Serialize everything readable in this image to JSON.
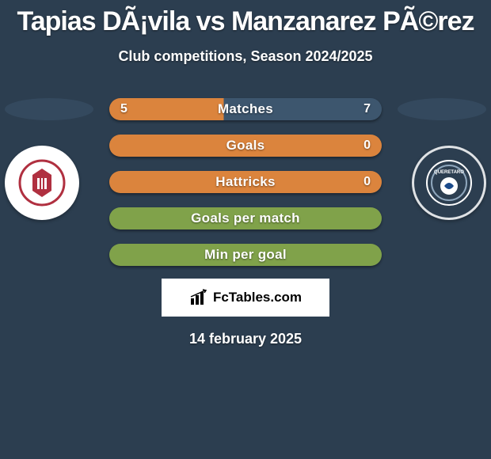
{
  "title": "Tapias DÃ¡vila vs Manzanarez PÃ©rez",
  "subtitle": "Club competitions, Season 2024/2025",
  "date": "14 february 2025",
  "logo_text": "FcTables.com",
  "background_color": "#2c3e50",
  "ellipse_color": "#34495e",
  "left_badge": {
    "bg": "#ffffff",
    "inner": "#b03040",
    "text": ""
  },
  "right_badge": {
    "bg": "#2c3e50",
    "inner": "#8fa7bd",
    "text": ""
  },
  "bars": [
    {
      "label": "Matches",
      "left": "5",
      "right": "7",
      "bg": "#db843d",
      "left_pct": 42
    },
    {
      "label": "Goals",
      "left": "",
      "right": "0",
      "bg": "#db843d",
      "left_pct": 100
    },
    {
      "label": "Hattricks",
      "left": "",
      "right": "0",
      "bg": "#db843d",
      "left_pct": 100
    },
    {
      "label": "Goals per match",
      "left": "",
      "right": "",
      "bg": "#80a24a",
      "left_pct": 100
    },
    {
      "label": "Min per goal",
      "left": "",
      "right": "",
      "bg": "#80a24a",
      "left_pct": 100
    }
  ],
  "bar_alt_color": "#3d566e"
}
